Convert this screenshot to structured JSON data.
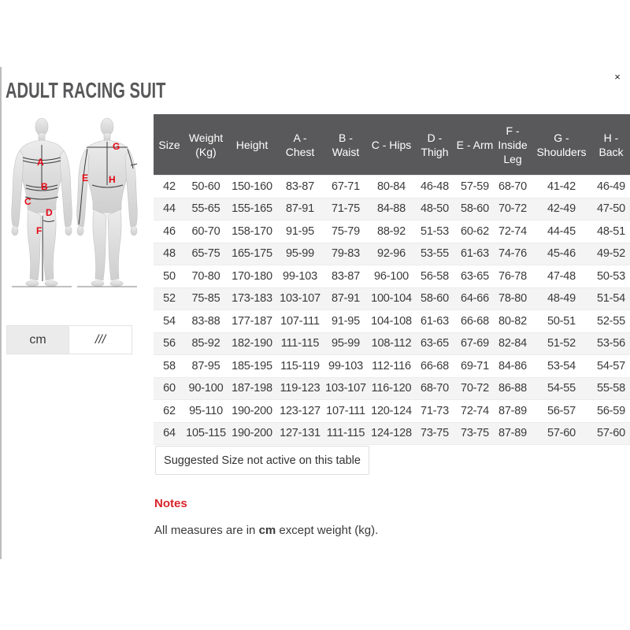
{
  "modal": {
    "close_icon": "×"
  },
  "title": "ADULT RACING SUIT",
  "figure": {
    "markers": {
      "a": "A",
      "b": "B",
      "c": "C",
      "d": "D",
      "e": "E",
      "f": "F",
      "g": "G",
      "h": "H"
    }
  },
  "unit_toggle": {
    "cm_label": "cm",
    "inches_label": "///"
  },
  "size_table": {
    "columns": [
      "Size",
      "Weight (Kg)",
      "Height",
      "A - Chest",
      "B - Waist",
      "C - Hips",
      "D - Thigh",
      "E - Arm",
      "F - Inside Leg",
      "G - Shoulders",
      "H - Back"
    ],
    "rows": [
      [
        "42",
        "50-60",
        "150-160",
        "83-87",
        "67-71",
        "80-84",
        "46-48",
        "57-59",
        "68-70",
        "41-42",
        "46-49"
      ],
      [
        "44",
        "55-65",
        "155-165",
        "87-91",
        "71-75",
        "84-88",
        "48-50",
        "58-60",
        "70-72",
        "42-49",
        "47-50"
      ],
      [
        "46",
        "60-70",
        "158-170",
        "91-95",
        "75-79",
        "88-92",
        "51-53",
        "60-62",
        "72-74",
        "44-45",
        "48-51"
      ],
      [
        "48",
        "65-75",
        "165-175",
        "95-99",
        "79-83",
        "92-96",
        "53-55",
        "61-63",
        "74-76",
        "45-46",
        "49-52"
      ],
      [
        "50",
        "70-80",
        "170-180",
        "99-103",
        "83-87",
        "96-100",
        "56-58",
        "63-65",
        "76-78",
        "47-48",
        "50-53"
      ],
      [
        "52",
        "75-85",
        "173-183",
        "103-107",
        "87-91",
        "100-104",
        "58-60",
        "64-66",
        "78-80",
        "48-49",
        "51-54"
      ],
      [
        "54",
        "83-88",
        "177-187",
        "107-111",
        "91-95",
        "104-108",
        "61-63",
        "66-68",
        "80-82",
        "50-51",
        "52-55"
      ],
      [
        "56",
        "85-92",
        "182-190",
        "111-115",
        "95-99",
        "108-112",
        "63-65",
        "67-69",
        "82-84",
        "51-52",
        "53-56"
      ],
      [
        "58",
        "87-95",
        "185-195",
        "115-119",
        "99-103",
        "112-116",
        "66-68",
        "69-71",
        "84-86",
        "53-54",
        "54-57"
      ],
      [
        "60",
        "90-100",
        "187-198",
        "119-123",
        "103-107",
        "116-120",
        "68-70",
        "70-72",
        "86-88",
        "54-55",
        "55-58"
      ],
      [
        "62",
        "95-110",
        "190-200",
        "123-127",
        "107-111",
        "120-124",
        "71-73",
        "72-74",
        "87-89",
        "56-57",
        "56-59"
      ],
      [
        "64",
        "105-115",
        "190-200",
        "127-131",
        "111-115",
        "124-128",
        "73-75",
        "73-75",
        "87-89",
        "57-60",
        "57-60"
      ]
    ]
  },
  "suggested_size_note": "Suggested Size not active on this table",
  "notes": {
    "heading": "Notes",
    "before_bold": "All measures are in ",
    "bold": "cm",
    "after_bold": " except weight (kg)."
  },
  "colors": {
    "table_header_bg": "#59595b",
    "row_stripe": "#f4f4f4",
    "notes_red": "#d8232a",
    "marker_red": "#e30613",
    "title_gray": "#58585a"
  }
}
